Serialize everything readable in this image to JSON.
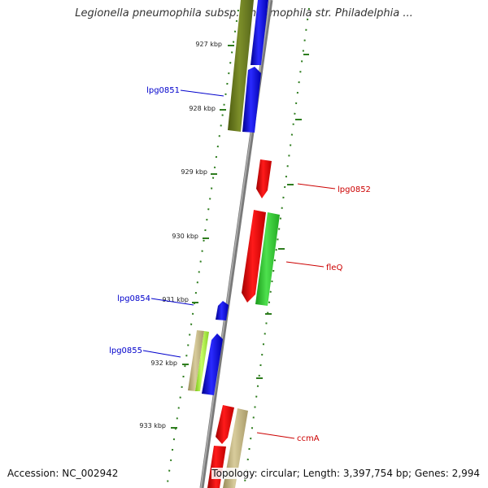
{
  "title": "Legionella pneumophila subsp. pneumophila str. Philadelphia ...",
  "footer": {
    "accession": "Accession: NC_002942",
    "topology": "Topology: circular; Length: 3,397,754 bp; Genes: 2,994"
  },
  "ruler_ticks": [
    "927 kbp",
    "928 kbp",
    "929 kbp",
    "930 kbp",
    "931 kbp",
    "932 kbp",
    "933 kbp"
  ],
  "genes": [
    {
      "name": "lpg0851",
      "strand": "reverse",
      "color": "#1a1aff"
    },
    {
      "name": "lpg0852",
      "strand": "forward",
      "color": "#ff0000"
    },
    {
      "name": "fleQ",
      "strand": "forward",
      "color": "#ff0000"
    },
    {
      "name": "lpg0854",
      "strand": "reverse",
      "color": "#1a1aff"
    },
    {
      "name": "lpg0855",
      "strand": "reverse",
      "color": "#1a1aff"
    },
    {
      "name": "ccmA",
      "strand": "forward",
      "color": "#ff0000"
    }
  ],
  "colors": {
    "backbone": "#808080",
    "ruler": "#2e7d1e",
    "reverse_label": "#0000cc",
    "forward_label": "#cc0000",
    "olive": "#6b7d1e",
    "green": "#33cc33",
    "lime": "#99ee33",
    "tan": "#b8a878"
  }
}
